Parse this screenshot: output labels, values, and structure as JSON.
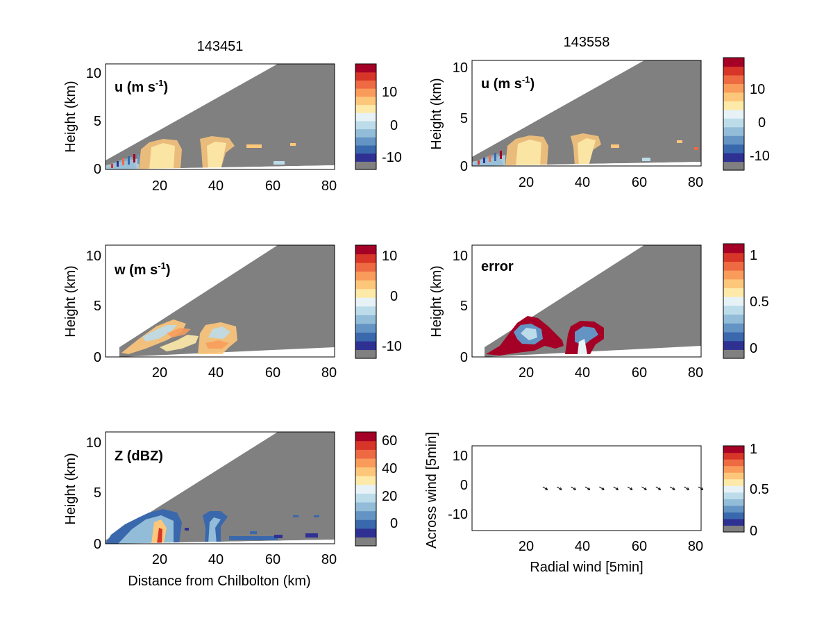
{
  "figure": {
    "column_titles": [
      "143451",
      "143558"
    ]
  },
  "colormap": [
    "#808080",
    "#2e3192",
    "#3a68ad",
    "#6394c4",
    "#92bcd8",
    "#bcdcea",
    "#e6f2f6",
    "#fde9a8",
    "#fdc77b",
    "#f99b5b",
    "#ee6a43",
    "#d73528",
    "#a50026"
  ],
  "chart_data": [
    {
      "type": "heatmap",
      "panel": "u-143451",
      "column_title": "143451",
      "annotation": "u (m s-1)",
      "ylabel": "Height (km)",
      "xlabel": "",
      "xlim": [
        1,
        82
      ],
      "ylim": [
        0,
        11
      ],
      "xticks": [
        20,
        40,
        60,
        80
      ],
      "yticks": [
        0,
        5,
        10
      ],
      "colorbar": {
        "ticks": [
          10,
          0,
          -10
        ],
        "range": [
          -15,
          20
        ]
      },
      "features": [
        {
          "x_range": [
            12,
            26
          ],
          "top_km": 3.0,
          "value": "≈5"
        },
        {
          "x_range": [
            34,
            44
          ],
          "top_km": 3.2,
          "value": "≈5"
        }
      ]
    },
    {
      "type": "heatmap",
      "panel": "u-143558",
      "column_title": "143558",
      "annotation": "u (m s-1)",
      "ylabel": "Height (km)",
      "xlabel": "",
      "xlim": [
        1,
        82
      ],
      "ylim": [
        0,
        11
      ],
      "xticks": [
        20,
        40,
        60,
        80
      ],
      "yticks": [
        0,
        5,
        10
      ],
      "colorbar": {
        "ticks": [
          10,
          0,
          -10
        ],
        "range": [
          -15,
          20
        ]
      },
      "features": [
        {
          "x_range": [
            12,
            26
          ],
          "top_km": 3.0,
          "value": "≈5"
        },
        {
          "x_range": [
            34,
            44
          ],
          "top_km": 3.2,
          "value": "≈5"
        }
      ]
    },
    {
      "type": "heatmap",
      "panel": "w",
      "annotation": "w (m s-1)",
      "ylabel": "Height (km)",
      "xlabel": "",
      "xlim": [
        1,
        82
      ],
      "ylim": [
        0,
        11
      ],
      "xticks": [
        20,
        40,
        60,
        80
      ],
      "yticks": [
        0,
        5,
        10
      ],
      "colorbar": {
        "ticks": [
          10,
          0,
          -10
        ],
        "range": [
          -12.5,
          10
        ]
      }
    },
    {
      "type": "heatmap",
      "panel": "error",
      "annotation": "error",
      "ylabel": "Height (km)",
      "xlabel": "",
      "xlim": [
        1,
        82
      ],
      "ylim": [
        0,
        11
      ],
      "xticks": [
        20,
        40,
        60,
        80
      ],
      "yticks": [
        0,
        5,
        10
      ],
      "colorbar": {
        "ticks": [
          1,
          0.5,
          0
        ],
        "range": [
          -0.1,
          1.1
        ]
      }
    },
    {
      "type": "heatmap",
      "panel": "Z",
      "annotation": "Z (dBZ)",
      "ylabel": "Height (km)",
      "xlabel": "Distance from Chilbolton (km)",
      "xlim": [
        1,
        82
      ],
      "ylim": [
        0,
        11
      ],
      "xticks": [
        20,
        40,
        60,
        80
      ],
      "yticks": [
        0,
        5,
        10
      ],
      "colorbar": {
        "ticks": [
          60,
          40,
          20,
          0
        ],
        "range": [
          -15,
          60
        ]
      }
    },
    {
      "type": "scatter",
      "panel": "wind-vectors",
      "annotation": "",
      "xlabel": "Radial wind [5min]",
      "ylabel": "Across wind [5min]",
      "xlim": [
        1,
        82
      ],
      "ylim": [
        -16,
        15
      ],
      "xticks": [
        20,
        40,
        60,
        80
      ],
      "yticks": [
        10,
        0,
        -10
      ],
      "vectors": {
        "x": [
          26,
          31,
          36,
          41,
          46,
          51,
          56,
          61,
          66,
          71,
          76,
          81
        ],
        "y": [
          0,
          0,
          0,
          0,
          0,
          0,
          0,
          0,
          0,
          0,
          0,
          0
        ],
        "u": [
          1,
          1,
          1,
          1,
          1,
          1,
          1,
          1,
          1,
          1,
          1,
          1
        ],
        "v": [
          -0.6,
          -0.6,
          -0.6,
          -0.6,
          -0.6,
          -0.6,
          -0.6,
          -0.6,
          -0.6,
          -0.6,
          -0.6,
          -0.6
        ]
      },
      "colorbar": {
        "ticks": [
          1,
          0.5,
          0
        ],
        "range": [
          0,
          1
        ]
      }
    }
  ]
}
